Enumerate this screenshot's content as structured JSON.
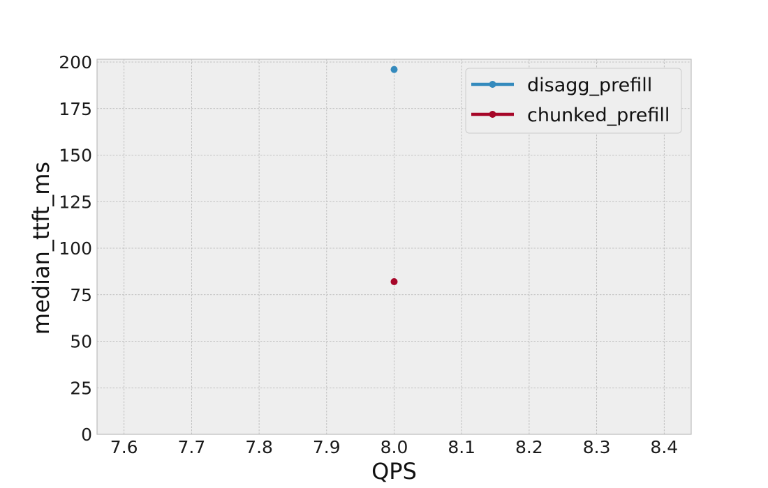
{
  "chart_data": {
    "type": "line",
    "title": "",
    "xlabel": "QPS",
    "ylabel": "median_ttft_ms",
    "xlim": [
      7.56,
      8.44
    ],
    "ylim": [
      0,
      201.5
    ],
    "xticks": [
      7.6,
      7.7,
      7.8,
      7.9,
      8.0,
      8.1,
      8.2,
      8.3,
      8.4
    ],
    "xtick_labels": [
      "7.6",
      "7.7",
      "7.8",
      "7.9",
      "8.0",
      "8.1",
      "8.2",
      "8.3",
      "8.4"
    ],
    "yticks": [
      0,
      25,
      50,
      75,
      100,
      125,
      150,
      175,
      200
    ],
    "ytick_labels": [
      "0",
      "25",
      "50",
      "75",
      "100",
      "125",
      "150",
      "175",
      "200"
    ],
    "grid": true,
    "legend_position": "top-right",
    "series": [
      {
        "name": "disagg_prefill",
        "color": "#348ABD",
        "x": [
          8.0
        ],
        "y": [
          196
        ]
      },
      {
        "name": "chunked_prefill",
        "color": "#A60628",
        "x": [
          8.0
        ],
        "y": [
          82
        ]
      }
    ],
    "background_color": "#EEEEEE",
    "grid_color": "#B2B2B2"
  }
}
